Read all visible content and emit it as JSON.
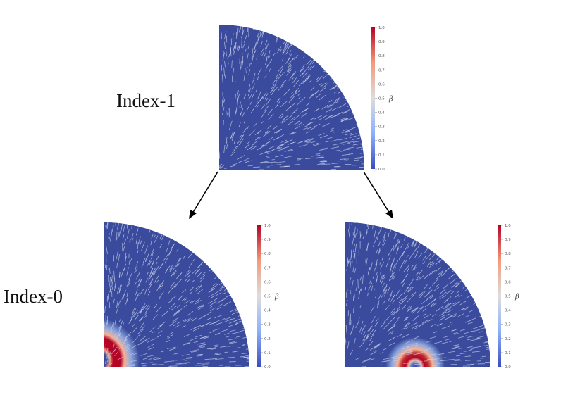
{
  "labels": {
    "top": "Index-1",
    "bottom": "Index-0"
  },
  "colorbar": {
    "title": "β",
    "ticks": [
      "0.0",
      "0.1",
      "0.2",
      "0.3",
      "0.4",
      "0.5",
      "0.6",
      "0.7",
      "0.8",
      "0.9",
      "1.0"
    ],
    "range": [
      0,
      1
    ],
    "colormap": [
      "#3b4cc0",
      "#8db0fe",
      "#dddddd",
      "#f49a7b",
      "#b40426"
    ]
  },
  "panels": [
    {
      "name": "index-1",
      "feature": "none"
    },
    {
      "name": "index-0-left",
      "feature": "half-ring on left edge"
    },
    {
      "name": "index-0-right",
      "feature": "half-ring on bottom edge"
    }
  ],
  "colors": {
    "field": "#3a4b9d",
    "streamline": "#c8cfe8",
    "arrow": "#000000"
  }
}
